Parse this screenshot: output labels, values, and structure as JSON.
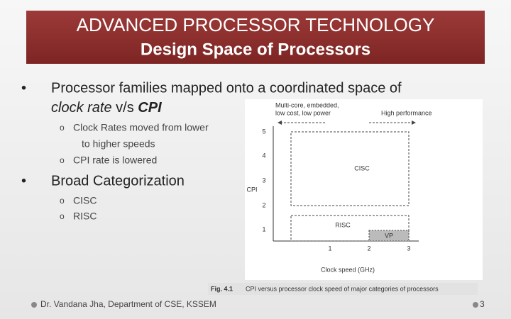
{
  "header": {
    "title_line1": "ADVANCED PROCESSOR TECHNOLOGY",
    "title_line2": "Design Space of Processors"
  },
  "bullets": [
    {
      "text_line1": "Processor families mapped onto a coordinated space of",
      "text_line2": {
        "italic1": "clock rate",
        "plain": "v/s",
        "italic2": "CPI"
      },
      "sub": [
        "Clock Rates moved from lower",
        "to higher speeds",
        "CPI rate is lowered"
      ]
    },
    {
      "text": "Broad Categorization",
      "sub": [
        "CISC",
        "RISC"
      ]
    }
  ],
  "figure": {
    "label_left_line1": "Multi-core, embedded,",
    "label_left_line2": "low cost, low power",
    "label_right": "High performance",
    "y_axis_label": "CPI",
    "x_axis_label": "Clock speed (GHz)",
    "y_ticks": [
      "5",
      "4",
      "3",
      "2",
      "1"
    ],
    "x_ticks": [
      "1",
      "2",
      "3"
    ],
    "regions": [
      "CISC",
      "RISC",
      "VP"
    ],
    "caption_number": "Fig. 4.1",
    "caption_text": "CPI versus processor clock speed of major categories of processors"
  },
  "footer": {
    "author": "Dr. Vandana Jha,  Department of CSE, KSSEM",
    "page": "3"
  }
}
